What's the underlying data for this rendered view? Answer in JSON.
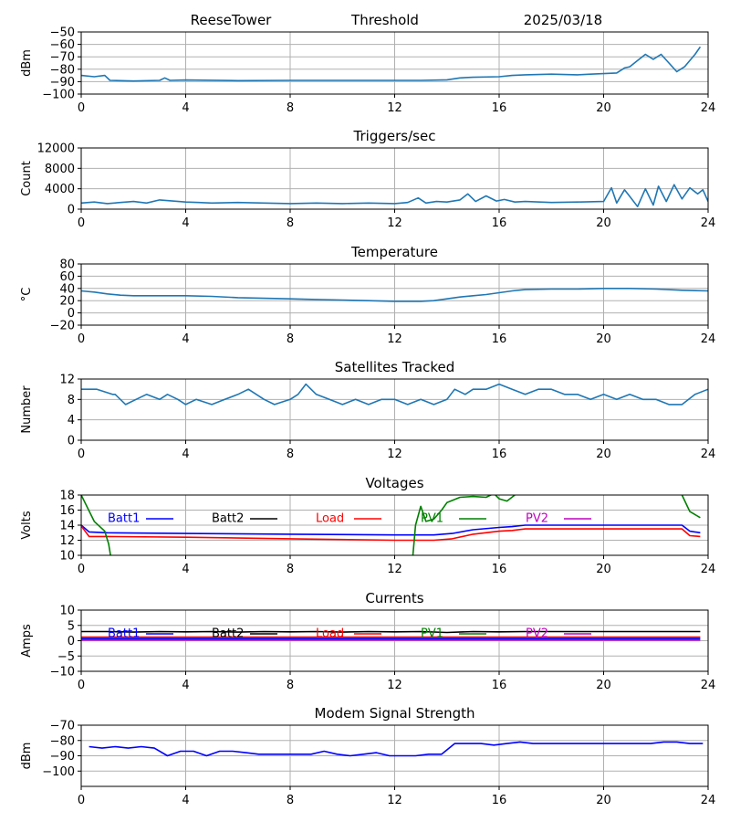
{
  "header": {
    "site": "ReeseTower",
    "product": "Threshold",
    "date": "2025/03/18"
  },
  "colors": {
    "series_default": "#1f77b4",
    "grid": "#b0b0b0",
    "batt1": "#0000ff",
    "batt2": "#000000",
    "load": "#ff0000",
    "pv1": "#008000",
    "pv2": "#bf00bf",
    "modem": "#0000ff"
  },
  "chart_data": [
    {
      "id": "threshold",
      "type": "line",
      "title": "",
      "xlabel": "",
      "ylabel": "dBm",
      "xlim": [
        0,
        24
      ],
      "ylim": [
        -100,
        -50
      ],
      "xticks": [
        "0",
        "4",
        "8",
        "12",
        "16",
        "20",
        "24"
      ],
      "yticks": [
        "−100",
        "−90",
        "−80",
        "−70",
        "−60",
        "−50"
      ],
      "grid": true,
      "series": [
        {
          "color": "series_default",
          "x": [
            0,
            0.5,
            0.9,
            1.1,
            2,
            3,
            3.2,
            3.4,
            4,
            6,
            8,
            10,
            12,
            13,
            14,
            14.5,
            15,
            16,
            16.5,
            17,
            18,
            19,
            19.5,
            20,
            20.5,
            20.8,
            21,
            21.3,
            21.6,
            21.9,
            22.2,
            22.5,
            22.8,
            23.1,
            23.5,
            23.7
          ],
          "y": [
            -85,
            -86,
            -85,
            -89,
            -89.5,
            -89,
            -87,
            -89,
            -88.7,
            -89.2,
            -89,
            -89,
            -89,
            -89,
            -88.5,
            -87,
            -86.5,
            -86,
            -85,
            -84.5,
            -84,
            -84.5,
            -84,
            -83.5,
            -83,
            -79,
            -78,
            -73,
            -68,
            -72,
            -68,
            -75,
            -82,
            -78,
            -68,
            -62
          ]
        }
      ]
    },
    {
      "id": "triggers",
      "type": "line",
      "title": "Triggers/sec",
      "xlabel": "",
      "ylabel": "Count",
      "xlim": [
        0,
        24
      ],
      "ylim": [
        0,
        12000
      ],
      "xticks": [
        "0",
        "4",
        "8",
        "12",
        "16",
        "20",
        "24"
      ],
      "yticks": [
        "0",
        "4000",
        "8000",
        "12000"
      ],
      "grid": true,
      "series": [
        {
          "color": "series_default",
          "x": [
            0,
            0.5,
            1,
            1.5,
            2,
            2.5,
            3,
            3.5,
            4,
            4.5,
            5,
            6,
            7,
            8,
            9,
            10,
            11,
            12,
            12.5,
            12.9,
            13.2,
            13.6,
            14,
            14.5,
            14.8,
            15.1,
            15.5,
            15.9,
            16.2,
            16.6,
            17,
            18,
            19,
            20,
            20.3,
            20.5,
            20.8,
            21,
            21.3,
            21.6,
            21.9,
            22.1,
            22.4,
            22.7,
            23,
            23.3,
            23.6,
            23.8,
            24
          ],
          "y": [
            1200,
            1400,
            1100,
            1300,
            1500,
            1200,
            1800,
            1600,
            1400,
            1300,
            1200,
            1300,
            1200,
            1100,
            1200,
            1100,
            1200,
            1100,
            1300,
            2200,
            1200,
            1500,
            1400,
            1800,
            3000,
            1500,
            2600,
            1600,
            1900,
            1400,
            1500,
            1300,
            1400,
            1500,
            4200,
            1200,
            3800,
            2500,
            500,
            4000,
            800,
            4500,
            1500,
            4800,
            2000,
            4200,
            3000,
            3800,
            1500
          ]
        }
      ]
    },
    {
      "id": "temperature",
      "type": "line",
      "title": "Temperature",
      "xlabel": "",
      "ylabel": "°C",
      "xlim": [
        0,
        24
      ],
      "ylim": [
        -20,
        80
      ],
      "xticks": [
        "0",
        "4",
        "8",
        "12",
        "16",
        "20",
        "24"
      ],
      "yticks": [
        "−20",
        "0",
        "20",
        "40",
        "60",
        "80"
      ],
      "grid": true,
      "series": [
        {
          "color": "series_default",
          "x": [
            0,
            0.5,
            1,
            1.5,
            2,
            4,
            5,
            6,
            8,
            9,
            10,
            11,
            12,
            13,
            13.5,
            14,
            14.5,
            15,
            15.5,
            16,
            16.5,
            17,
            18,
            19,
            20,
            21,
            22,
            23,
            24
          ],
          "y": [
            36,
            34,
            31,
            29,
            28,
            28,
            27,
            25,
            23,
            22,
            21,
            20,
            19,
            19,
            20,
            23,
            26,
            28,
            30,
            33,
            36,
            38,
            39,
            39,
            40,
            40,
            39,
            37,
            36
          ]
        }
      ]
    },
    {
      "id": "satellites",
      "type": "line",
      "title": "Satellites Tracked",
      "xlabel": "",
      "ylabel": "Number",
      "xlim": [
        0,
        24
      ],
      "ylim": [
        0,
        12
      ],
      "xticks": [
        "0",
        "4",
        "8",
        "12",
        "16",
        "20",
        "24"
      ],
      "yticks": [
        "0",
        "4",
        "8",
        "12"
      ],
      "grid": true,
      "series": [
        {
          "color": "series_default",
          "x": [
            0,
            0.6,
            1.2,
            1.3,
            1.7,
            2.1,
            2.5,
            3,
            3.3,
            3.7,
            4,
            4.4,
            5,
            5.5,
            6,
            6.4,
            7,
            7.4,
            8,
            8.3,
            8.6,
            9,
            9.5,
            10,
            10.5,
            11,
            11.5,
            12,
            12.5,
            13,
            13.5,
            14,
            14.3,
            14.7,
            15,
            15.5,
            16,
            16.5,
            17,
            17.5,
            18,
            18.5,
            19,
            19.5,
            20,
            20.5,
            21,
            21.5,
            22,
            22.5,
            23,
            23.5,
            24
          ],
          "y": [
            10,
            10,
            9,
            9,
            7,
            8,
            9,
            8,
            9,
            8,
            7,
            8,
            7,
            8,
            9,
            10,
            8,
            7,
            8,
            9,
            11,
            9,
            8,
            7,
            8,
            7,
            8,
            8,
            7,
            8,
            7,
            8,
            10,
            9,
            10,
            10,
            11,
            10,
            9,
            10,
            10,
            9,
            9,
            8,
            9,
            8,
            9,
            8,
            8,
            7,
            7,
            9,
            10
          ]
        }
      ]
    },
    {
      "id": "voltages",
      "type": "line",
      "title": "Voltages",
      "xlabel": "",
      "ylabel": "Volts",
      "xlim": [
        0,
        24
      ],
      "ylim": [
        10,
        18
      ],
      "xticks": [
        "0",
        "4",
        "8",
        "12",
        "16",
        "20",
        "24"
      ],
      "yticks": [
        "10",
        "12",
        "14",
        "16",
        "18"
      ],
      "grid": true,
      "legend": [
        "Batt1",
        "Batt2",
        "Load",
        "PV1",
        "PV2"
      ],
      "series": [
        {
          "name": "Batt1",
          "color": "batt1",
          "x": [
            0,
            0.3,
            1,
            4,
            8,
            12,
            13.5,
            14.2,
            15,
            16,
            16.5,
            17,
            20,
            22,
            23,
            23.3,
            23.7
          ],
          "y": [
            14,
            13.1,
            13,
            12.9,
            12.8,
            12.7,
            12.7,
            12.9,
            13.4,
            13.7,
            13.8,
            14.0,
            14.0,
            14.0,
            14.0,
            13.2,
            13.0
          ]
        },
        {
          "name": "Load",
          "color": "load",
          "x": [
            0,
            0.3,
            1,
            4,
            8,
            12,
            13.5,
            14.2,
            15,
            16,
            16.5,
            17,
            20,
            22,
            23,
            23.3,
            23.7
          ],
          "y": [
            13.9,
            12.5,
            12.5,
            12.4,
            12.2,
            12.0,
            12.0,
            12.2,
            12.8,
            13.2,
            13.3,
            13.5,
            13.5,
            13.5,
            13.5,
            12.6,
            12.5
          ]
        },
        {
          "name": "PV1",
          "color": "pv1",
          "x": [
            0,
            0.5,
            0.9,
            1.05,
            1.12
          ],
          "y": [
            18,
            14.5,
            13.2,
            11.5,
            10
          ]
        },
        {
          "name": "PV1",
          "color": "pv1",
          "x": [
            12.7,
            12.8,
            13,
            13.2,
            13.5,
            13.8,
            14,
            14.5,
            15,
            15.5,
            15.8,
            16,
            16.3,
            16.6
          ],
          "y": [
            10,
            14,
            16.5,
            14.5,
            14.8,
            16,
            17,
            17.7,
            17.8,
            17.7,
            18.2,
            17.5,
            17.2,
            18
          ]
        },
        {
          "name": "PV1",
          "color": "pv1",
          "x": [
            23,
            23.3,
            23.7
          ],
          "y": [
            18,
            15.8,
            15
          ]
        }
      ]
    },
    {
      "id": "currents",
      "type": "line",
      "title": "Currents",
      "xlabel": "",
      "ylabel": "Amps",
      "xlim": [
        0,
        24
      ],
      "ylim": [
        -10,
        10
      ],
      "xticks": [
        "0",
        "4",
        "8",
        "12",
        "16",
        "20",
        "24"
      ],
      "yticks": [
        "−10",
        "−5",
        "0",
        "5",
        "10"
      ],
      "grid": true,
      "legend": [
        "Batt1",
        "Batt2",
        "Load",
        "PV1",
        "PV2"
      ],
      "series": [
        {
          "name": "Batt2",
          "color": "batt2",
          "x": [
            0,
            1,
            2,
            3,
            4,
            5,
            6,
            7,
            8,
            9,
            10,
            11,
            12,
            13,
            14,
            15,
            16,
            17,
            18,
            19,
            20,
            21,
            22,
            23,
            23.7
          ],
          "y": [
            3,
            3,
            2.8,
            3,
            2.9,
            3,
            2.8,
            3,
            2.9,
            3,
            2.8,
            3,
            2.9,
            3,
            2.7,
            3,
            2.9,
            3,
            3,
            3,
            3,
            3,
            3,
            3,
            3
          ]
        },
        {
          "name": "Load",
          "color": "load",
          "x": [
            0,
            23.7
          ],
          "y": [
            1.2,
            1.2
          ]
        },
        {
          "name": "Batt1",
          "color": "batt1",
          "x": [
            0,
            23.7
          ],
          "y": [
            0.7,
            0.7
          ]
        },
        {
          "name": "PV2",
          "color": "pv2",
          "x": [
            0,
            23.7
          ],
          "y": [
            0.2,
            0.2
          ]
        }
      ]
    },
    {
      "id": "modem",
      "type": "line",
      "title": "Modem Signal Strength",
      "xlabel": "",
      "ylabel": "dBm",
      "xlim": [
        0,
        24
      ],
      "ylim": [
        -110,
        -70
      ],
      "xticks": [
        "0",
        "4",
        "8",
        "12",
        "16",
        "20",
        "24"
      ],
      "yticks": [
        "−100",
        "−90",
        "−80",
        "−70"
      ],
      "grid": true,
      "series": [
        {
          "color": "modem",
          "x": [
            0.3,
            0.8,
            1.3,
            1.8,
            2.3,
            2.8,
            3.3,
            3.8,
            4.3,
            4.8,
            5.3,
            5.8,
            6.3,
            6.8,
            7.3,
            7.8,
            8.3,
            8.8,
            9.3,
            9.8,
            10.3,
            10.8,
            11.3,
            11.8,
            12.3,
            12.8,
            13.3,
            13.8,
            14.3,
            14.8,
            15.3,
            15.8,
            16.3,
            16.8,
            17.3,
            17.8,
            18.3,
            18.8,
            19.3,
            19.8,
            20.3,
            20.8,
            21.3,
            21.8,
            22.3,
            22.8,
            23.3,
            23.8
          ],
          "y": [
            -84,
            -85,
            -84,
            -85,
            -84,
            -85,
            -90,
            -87,
            -87,
            -90,
            -87,
            -87,
            -88,
            -89,
            -89,
            -89,
            -89,
            -89,
            -87,
            -89,
            -90,
            -89,
            -88,
            -90,
            -90,
            -90,
            -89,
            -89,
            -82,
            -82,
            -82,
            -83,
            -82,
            -81,
            -82,
            -82,
            -82,
            -82,
            -82,
            -82,
            -82,
            -82,
            -82,
            -82,
            -81,
            -81,
            -82,
            -82
          ]
        }
      ]
    }
  ]
}
